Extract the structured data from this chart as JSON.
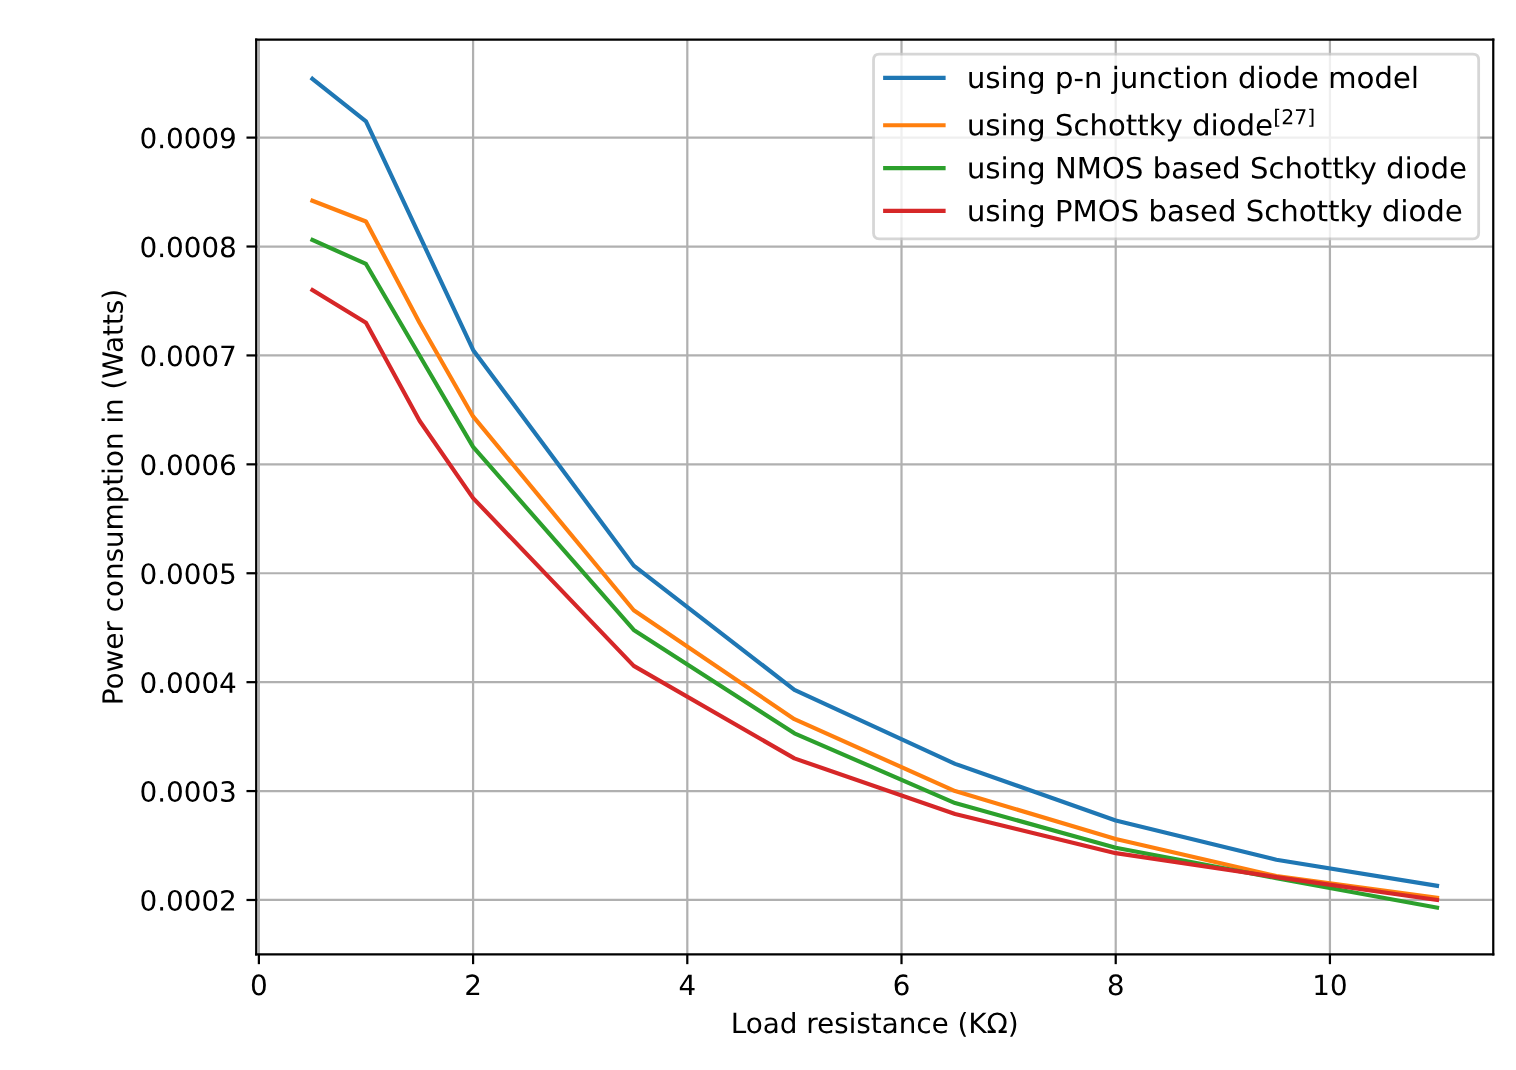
{
  "chart_data": {
    "type": "line",
    "xlabel": "Load resistance (KΩ)",
    "ylabel": "Power consumption in (Watts)",
    "x": [
      0.5,
      1,
      1.5,
      2,
      3.5,
      5,
      6.5,
      8,
      9.5,
      11
    ],
    "series": [
      {
        "name": "using p-n junction diode model",
        "color": "#1f77b4",
        "values": [
          0.000954,
          0.000915,
          0.00081,
          0.000705,
          0.000507,
          0.000393,
          0.000325,
          0.000273,
          0.000237,
          0.000213
        ]
      },
      {
        "name": "using Schottky diode$^{[27]}$",
        "color": "#ff7f0e",
        "values": [
          0.000842,
          0.000823,
          0.00073,
          0.000644,
          0.000466,
          0.000366,
          0.0003,
          0.000256,
          0.000222,
          0.000202
        ]
      },
      {
        "name": "using NMOS based Schottky diode",
        "color": "#2ca02c",
        "values": [
          0.000806,
          0.000784,
          0.0007,
          0.000616,
          0.000448,
          0.000353,
          0.000289,
          0.000248,
          0.00022,
          0.000193
        ]
      },
      {
        "name": "using PMOS based Schottky diode",
        "color": "#d62728",
        "values": [
          0.00076,
          0.00073,
          0.00064,
          0.000569,
          0.000415,
          0.00033,
          0.000279,
          0.000243,
          0.000221,
          0.0002
        ]
      }
    ],
    "xlim": [
      -0.025,
      11.525
    ],
    "ylim": [
      0.00015,
      0.00099
    ],
    "xticks": [
      0,
      2,
      4,
      6,
      8,
      10
    ],
    "yticks": [
      0.0002,
      0.0003,
      0.0004,
      0.0005,
      0.0006,
      0.0007,
      0.0008,
      0.0009
    ],
    "grid": true,
    "legend": "top right",
    "line_style": "solid",
    "marker": "none"
  }
}
